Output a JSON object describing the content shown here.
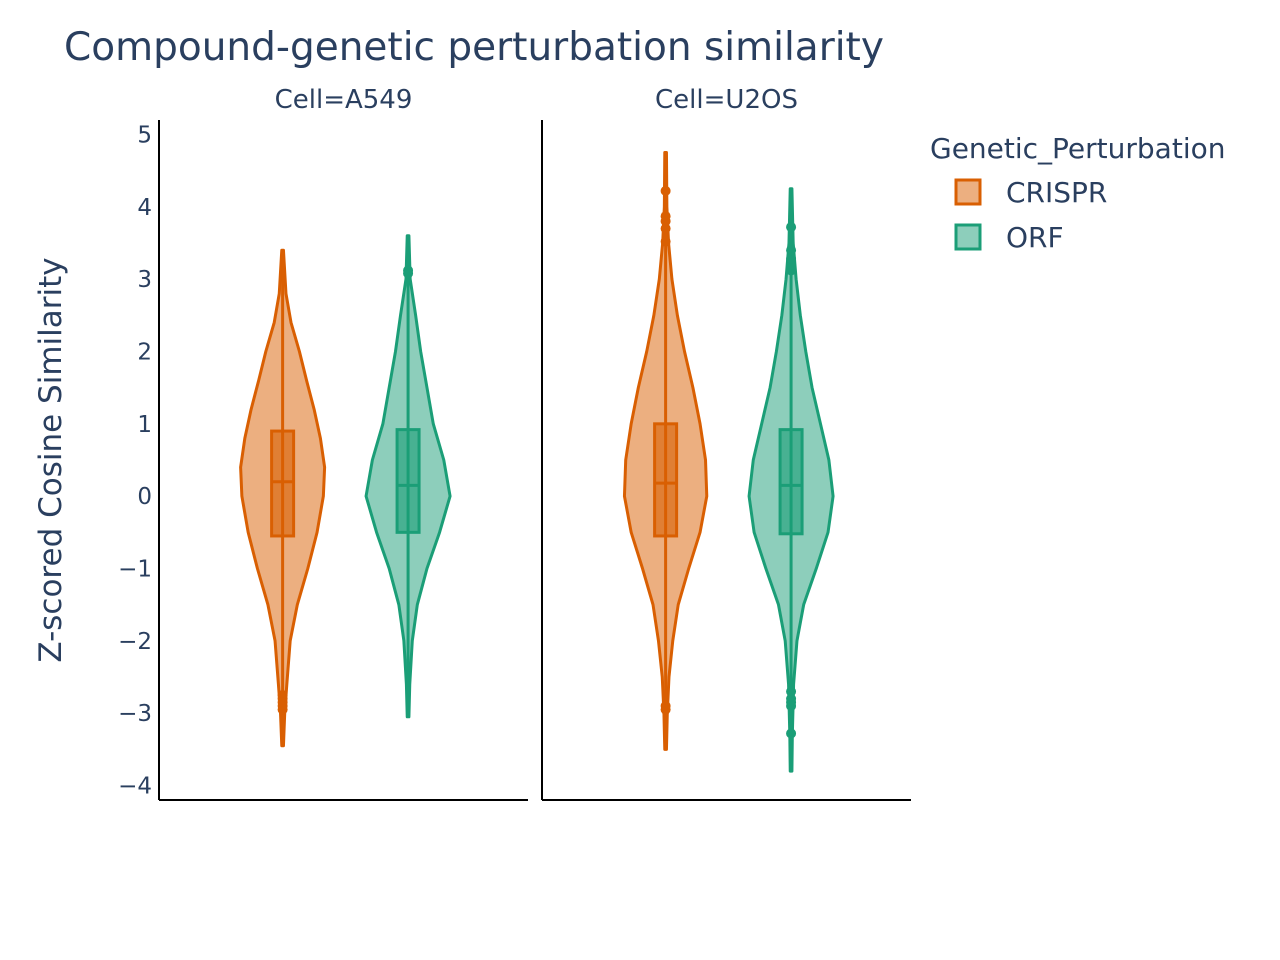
{
  "chart_data": {
    "type": "violin",
    "title": "Compound-genetic perturbation similarity",
    "xlabel": "",
    "ylabel": "Z-scored Cosine Similarity",
    "ylim": [
      -4.2,
      5.2
    ],
    "yticks": [
      5,
      4,
      3,
      2,
      1,
      0,
      -1,
      -2,
      -3,
      -4
    ],
    "ytick_labels": [
      "5",
      "4",
      "3",
      "2",
      "1",
      "0",
      "−1",
      "−2",
      "−3",
      "−4"
    ],
    "grid": false,
    "legend": {
      "title": "Genetic_Perturbation",
      "placement": "top-right",
      "entries": [
        "CRISPR",
        "ORF"
      ]
    },
    "colors": {
      "CRISPR": "#d95f02",
      "ORF": "#1b9e77"
    },
    "facets": [
      {
        "title": "Cell=A549",
        "groups": [
          {
            "name": "CRISPR",
            "box": {
              "q1": -0.55,
              "median": 0.2,
              "q3": 0.9
            },
            "whisker_range": [
              -3.45,
              3.4
            ],
            "outliers": [
              -2.75,
              -2.8,
              -2.85,
              -2.9,
              -2.95
            ],
            "density": [
              [
                -3.45,
                0.02
              ],
              [
                -3.0,
                0.05
              ],
              [
                -2.6,
                0.1
              ],
              [
                -2.0,
                0.18
              ],
              [
                -1.5,
                0.35
              ],
              [
                -1.0,
                0.6
              ],
              [
                -0.5,
                0.82
              ],
              [
                0.0,
                0.97
              ],
              [
                0.4,
                1.0
              ],
              [
                0.8,
                0.9
              ],
              [
                1.2,
                0.75
              ],
              [
                1.6,
                0.57
              ],
              [
                2.0,
                0.4
              ],
              [
                2.4,
                0.2
              ],
              [
                2.8,
                0.08
              ],
              [
                3.4,
                0.02
              ]
            ]
          },
          {
            "name": "ORF",
            "box": {
              "q1": -0.5,
              "median": 0.15,
              "q3": 0.92
            },
            "whisker_range": [
              -3.05,
              3.6
            ],
            "outliers": [
              3.08,
              3.12
            ],
            "density": [
              [
                -3.05,
                0.02
              ],
              [
                -2.6,
                0.04
              ],
              [
                -2.0,
                0.1
              ],
              [
                -1.5,
                0.22
              ],
              [
                -1.0,
                0.45
              ],
              [
                -0.5,
                0.75
              ],
              [
                0.0,
                1.0
              ],
              [
                0.5,
                0.85
              ],
              [
                1.0,
                0.6
              ],
              [
                1.5,
                0.45
              ],
              [
                2.0,
                0.3
              ],
              [
                2.5,
                0.18
              ],
              [
                3.0,
                0.05
              ],
              [
                3.6,
                0.02
              ]
            ]
          }
        ]
      },
      {
        "title": "Cell=U2OS",
        "groups": [
          {
            "name": "CRISPR",
            "box": {
              "q1": -0.55,
              "median": 0.18,
              "q3": 1.0
            },
            "whisker_range": [
              -3.5,
              4.75
            ],
            "outliers": [
              -2.9,
              -2.95,
              3.52,
              3.7,
              3.8,
              3.87,
              4.22
            ],
            "density": [
              [
                -3.5,
                0.02
              ],
              [
                -3.0,
                0.04
              ],
              [
                -2.5,
                0.08
              ],
              [
                -2.0,
                0.17
              ],
              [
                -1.5,
                0.3
              ],
              [
                -1.0,
                0.55
              ],
              [
                -0.5,
                0.82
              ],
              [
                0.0,
                0.98
              ],
              [
                0.5,
                0.95
              ],
              [
                1.0,
                0.82
              ],
              [
                1.5,
                0.65
              ],
              [
                2.0,
                0.45
              ],
              [
                2.5,
                0.28
              ],
              [
                3.0,
                0.15
              ],
              [
                3.5,
                0.07
              ],
              [
                4.0,
                0.03
              ],
              [
                4.75,
                0.02
              ]
            ]
          },
          {
            "name": "ORF",
            "box": {
              "q1": -0.52,
              "median": 0.15,
              "q3": 0.92
            },
            "whisker_range": [
              -3.8,
              4.25
            ],
            "outliers": [
              -2.7,
              -2.8,
              -2.85,
              -2.9,
              -3.28,
              3.12,
              3.2,
              3.28,
              3.4,
              3.72
            ],
            "density": [
              [
                -3.8,
                0.02
              ],
              [
                -3.3,
                0.03
              ],
              [
                -2.6,
                0.06
              ],
              [
                -2.0,
                0.14
              ],
              [
                -1.5,
                0.3
              ],
              [
                -1.0,
                0.6
              ],
              [
                -0.5,
                0.88
              ],
              [
                0.0,
                1.0
              ],
              [
                0.5,
                0.9
              ],
              [
                1.0,
                0.7
              ],
              [
                1.5,
                0.5
              ],
              [
                2.0,
                0.35
              ],
              [
                2.5,
                0.22
              ],
              [
                3.0,
                0.12
              ],
              [
                3.5,
                0.05
              ],
              [
                4.25,
                0.02
              ]
            ]
          }
        ]
      }
    ]
  }
}
